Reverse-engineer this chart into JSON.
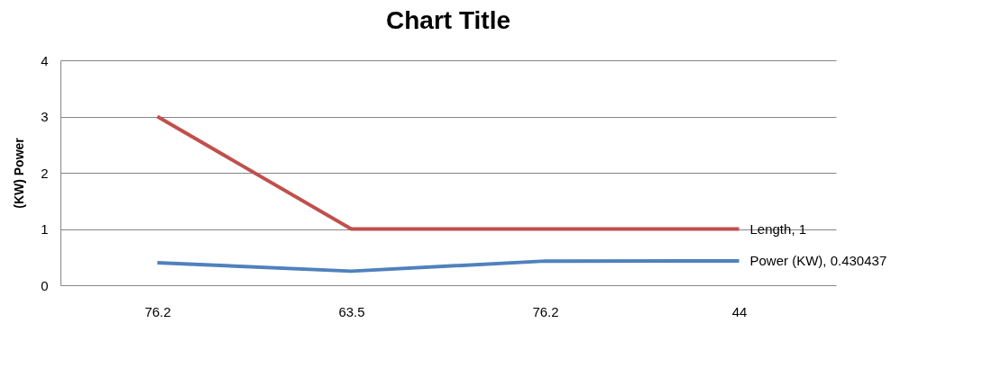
{
  "chart_data": {
    "type": "line",
    "title": "Chart Title",
    "ylabel": "(KW) Power",
    "categories": [
      "76.2",
      "63.5",
      "76.2",
      "44"
    ],
    "series": [
      {
        "color": "#4f81bd",
        "values": [
          0.4,
          0.25,
          0.43,
          0.430437
        ],
        "value_labels": [
          null,
          null,
          null,
          "Power (KW), 0.430437"
        ]
      },
      {
        "color": "#c0504d",
        "values": [
          3,
          1,
          1,
          1
        ],
        "value_labels": [
          null,
          null,
          null,
          "Length, 1"
        ]
      }
    ],
    "ylim": [
      0,
      4
    ],
    "yticks": [
      0,
      1,
      2,
      3,
      4
    ],
    "grid": "y",
    "legend": false,
    "marker": "none",
    "line_style": "solid"
  }
}
